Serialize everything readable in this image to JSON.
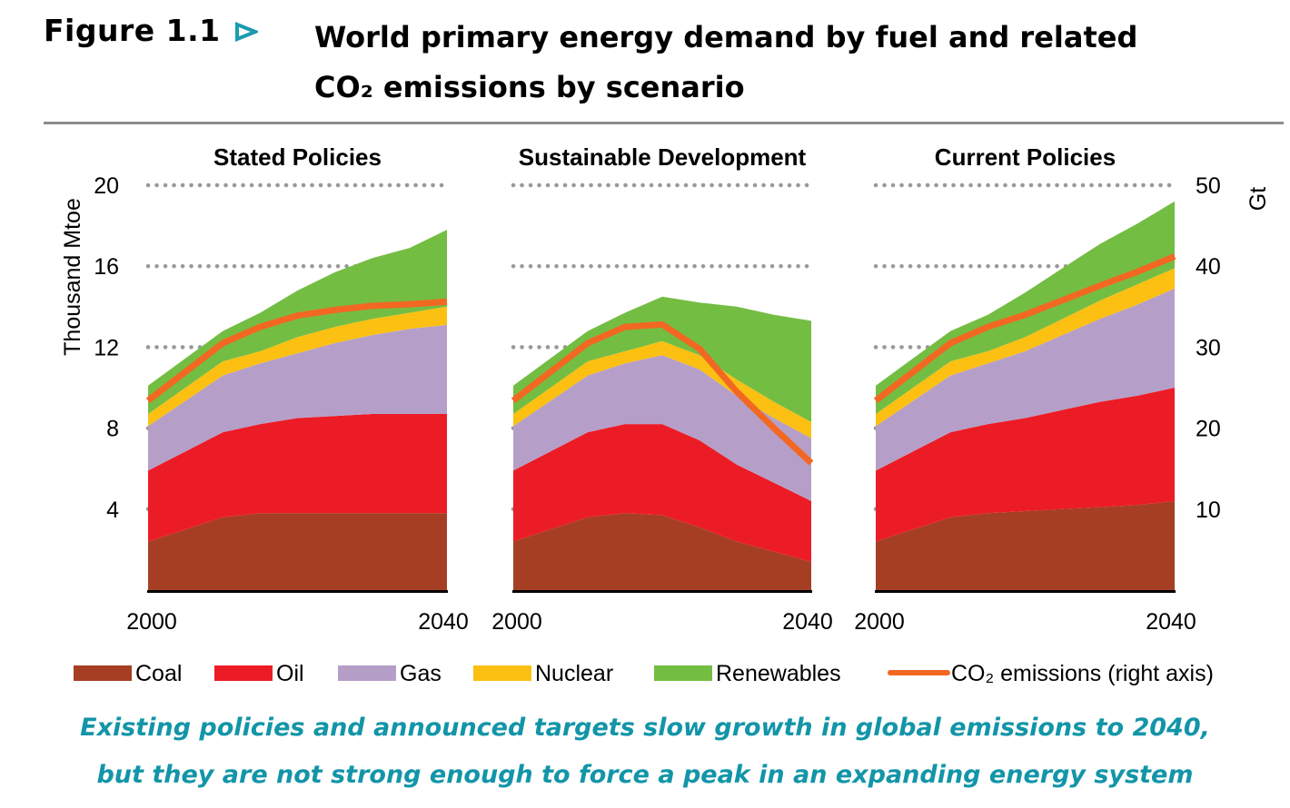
{
  "figure": {
    "label": "Figure 1.1",
    "arrow_icon": "triangle-right-outline",
    "accent_color": "#1a9bb0",
    "title_line1": "World primary energy demand by fuel and related",
    "title_line2": "CO₂ emissions by scenario"
  },
  "caption": {
    "line1": "Existing policies and announced targets slow growth in global emissions to 2040,",
    "line2": "but they are not strong enough to force a peak in an expanding energy system",
    "color": "#1295a8"
  },
  "chart_data": {
    "type": "area",
    "stacked": true,
    "title": "World primary energy demand by fuel and related CO₂ emissions by scenario",
    "ylabel": "Thousand Mtoe",
    "ylabel_right": "Gt",
    "ylim": [
      0,
      20
    ],
    "ylim_right": [
      0,
      50
    ],
    "yticks": [
      4,
      8,
      12,
      16,
      20
    ],
    "yticks_right": [
      10,
      20,
      30,
      40,
      50
    ],
    "grid": "dotted horizontal",
    "xlim": [
      2000,
      2040
    ],
    "xtick_labels": [
      "2000",
      "2040"
    ],
    "legend_position": "bottom",
    "fuels": [
      {
        "key": "coal",
        "name": "Coal",
        "color": "#a63e24"
      },
      {
        "key": "oil",
        "name": "Oil",
        "color": "#ec1c26"
      },
      {
        "key": "gas",
        "name": "Gas",
        "color": "#b59fc8"
      },
      {
        "key": "nuclear",
        "name": "Nuclear",
        "color": "#fbc012"
      },
      {
        "key": "renewables",
        "name": "Renewables",
        "color": "#74bd43"
      }
    ],
    "line_series": {
      "key": "co2",
      "name": "CO₂ emissions (right axis)",
      "color": "#f26822",
      "axis": "right"
    },
    "x": [
      2000,
      2010,
      2015,
      2020,
      2025,
      2030,
      2035,
      2040
    ],
    "panels": [
      {
        "title": "Stated Policies",
        "series": {
          "coal": [
            2.4,
            3.6,
            3.8,
            3.8,
            3.8,
            3.8,
            3.8,
            3.8
          ],
          "oil": [
            3.5,
            4.2,
            4.4,
            4.7,
            4.8,
            4.9,
            4.9,
            4.9
          ],
          "gas": [
            2.2,
            2.8,
            3.0,
            3.2,
            3.6,
            3.9,
            4.2,
            4.4
          ],
          "nuclear": [
            0.6,
            0.7,
            0.6,
            0.8,
            0.8,
            0.8,
            0.8,
            0.9
          ],
          "renewables": [
            1.4,
            1.5,
            1.9,
            2.3,
            2.7,
            3.0,
            3.2,
            3.8
          ]
        },
        "co2": [
          23.4,
          30.5,
          32.5,
          33.9,
          34.6,
          35.1,
          35.3,
          35.6
        ]
      },
      {
        "title": "Sustainable Development",
        "series": {
          "coal": [
            2.4,
            3.6,
            3.8,
            3.7,
            3.1,
            2.4,
            1.9,
            1.4
          ],
          "oil": [
            3.5,
            4.2,
            4.4,
            4.5,
            4.3,
            3.8,
            3.4,
            3.0
          ],
          "gas": [
            2.2,
            2.8,
            3.0,
            3.4,
            3.5,
            3.4,
            3.2,
            3.1
          ],
          "nuclear": [
            0.6,
            0.7,
            0.6,
            0.7,
            0.7,
            0.8,
            0.8,
            0.8
          ],
          "renewables": [
            1.4,
            1.5,
            1.9,
            2.2,
            2.6,
            3.6,
            4.3,
            5.0
          ]
        },
        "co2": [
          23.4,
          30.5,
          32.5,
          32.8,
          29.8,
          24.5,
          20.0,
          15.7
        ]
      },
      {
        "title": "Current Policies",
        "series": {
          "coal": [
            2.4,
            3.6,
            3.8,
            3.9,
            4.0,
            4.1,
            4.2,
            4.4
          ],
          "oil": [
            3.5,
            4.2,
            4.4,
            4.6,
            4.9,
            5.2,
            5.4,
            5.6
          ],
          "gas": [
            2.2,
            2.8,
            3.0,
            3.3,
            3.7,
            4.1,
            4.5,
            4.9
          ],
          "nuclear": [
            0.6,
            0.7,
            0.6,
            0.7,
            0.8,
            0.9,
            1.0,
            1.0
          ],
          "renewables": [
            1.4,
            1.5,
            1.8,
            2.2,
            2.5,
            2.8,
            3.0,
            3.3
          ]
        },
        "co2": [
          23.4,
          30.5,
          32.5,
          34.0,
          35.8,
          37.6,
          39.3,
          41.2
        ]
      }
    ]
  }
}
